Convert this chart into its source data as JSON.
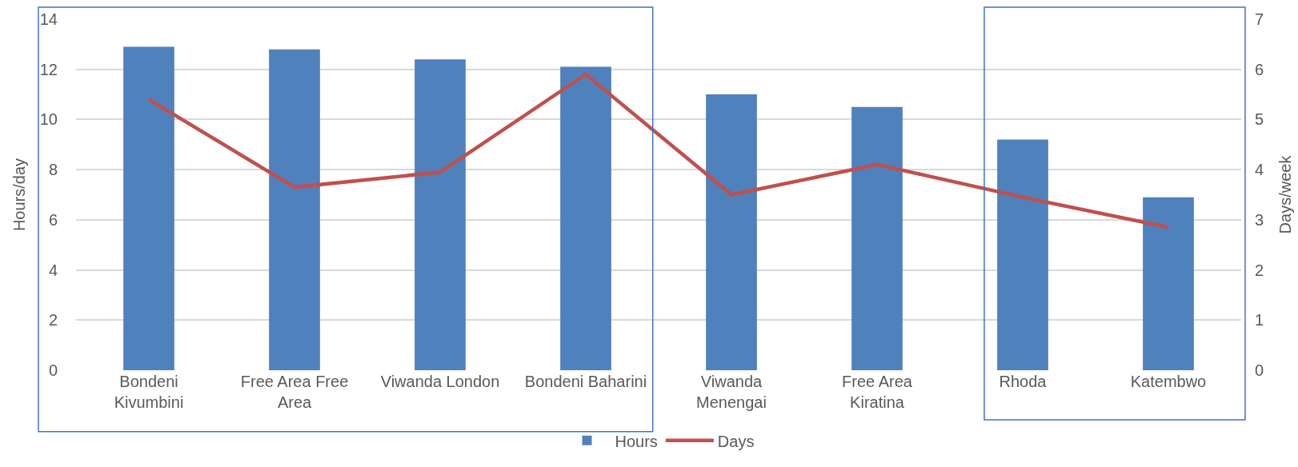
{
  "chart_data": {
    "type": "bar",
    "categories": [
      "Bondeni Kivumbini",
      "Free Area Free Area",
      "Viwanda London",
      "Bondeni Baharini",
      "Viwanda Menengai",
      "Free Area Kiratina",
      "Rhoda",
      "Katembwo"
    ],
    "ylabel": "Hours/day",
    "y2label": "Days/week",
    "ylim": [
      0,
      14
    ],
    "yticks": [
      0,
      2,
      4,
      6,
      8,
      10,
      12,
      14
    ],
    "y2lim": [
      0,
      7
    ],
    "y2ticks": [
      0,
      1,
      2,
      3,
      4,
      5,
      6,
      7
    ],
    "series": [
      {
        "name": "Hours",
        "color": "#4f81bd",
        "values": [
          12.9,
          12.8,
          12.4,
          12.1,
          11.0,
          10.5,
          9.2,
          6.9
        ]
      },
      {
        "name": "Days",
        "type": "line",
        "axis": "y2",
        "color": "#c0504d",
        "values": [
          5.4,
          3.65,
          3.95,
          5.9,
          3.5,
          4.1,
          3.45,
          2.85
        ]
      }
    ],
    "grid": "y",
    "legend": "bottom"
  }
}
